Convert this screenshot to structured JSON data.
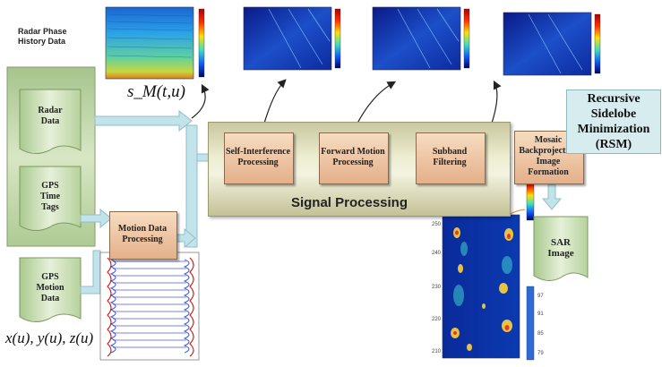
{
  "radar_history_title": "Radar Phase History Data",
  "signal_formula": "s_M(t,u)",
  "motion_formula": "x(u), y(u), z(u)",
  "inputs": {
    "radar_data": "Radar Data",
    "gps_time_tags": "GPS Time Tags",
    "gps_motion_data": "GPS Motion Data"
  },
  "motion_processing": "Motion Data Processing",
  "processing_steps": {
    "self_interference": "Self-Interference Processing",
    "forward_motion": "Forward Motion Processing",
    "subband": "Subband Filtering",
    "mosaic": "Mosaic Backprojection Image Formation"
  },
  "signal_processing_title": "Signal Processing",
  "rsm_label": "Recursive Sidelobe Minimization (RSM)",
  "sar_image_label": "SAR Image",
  "sar_axis_ticks": [
    "250",
    "240",
    "230",
    "220",
    "210"
  ],
  "sar_colorbar_ticks": [
    "97",
    "91",
    "85",
    "79"
  ],
  "colors": {
    "panel_green": "#c4d9a8",
    "box_orange": "#e4b08a",
    "arrow_blue": "#b9dfe6",
    "rsm_blue": "#d6ecef"
  }
}
